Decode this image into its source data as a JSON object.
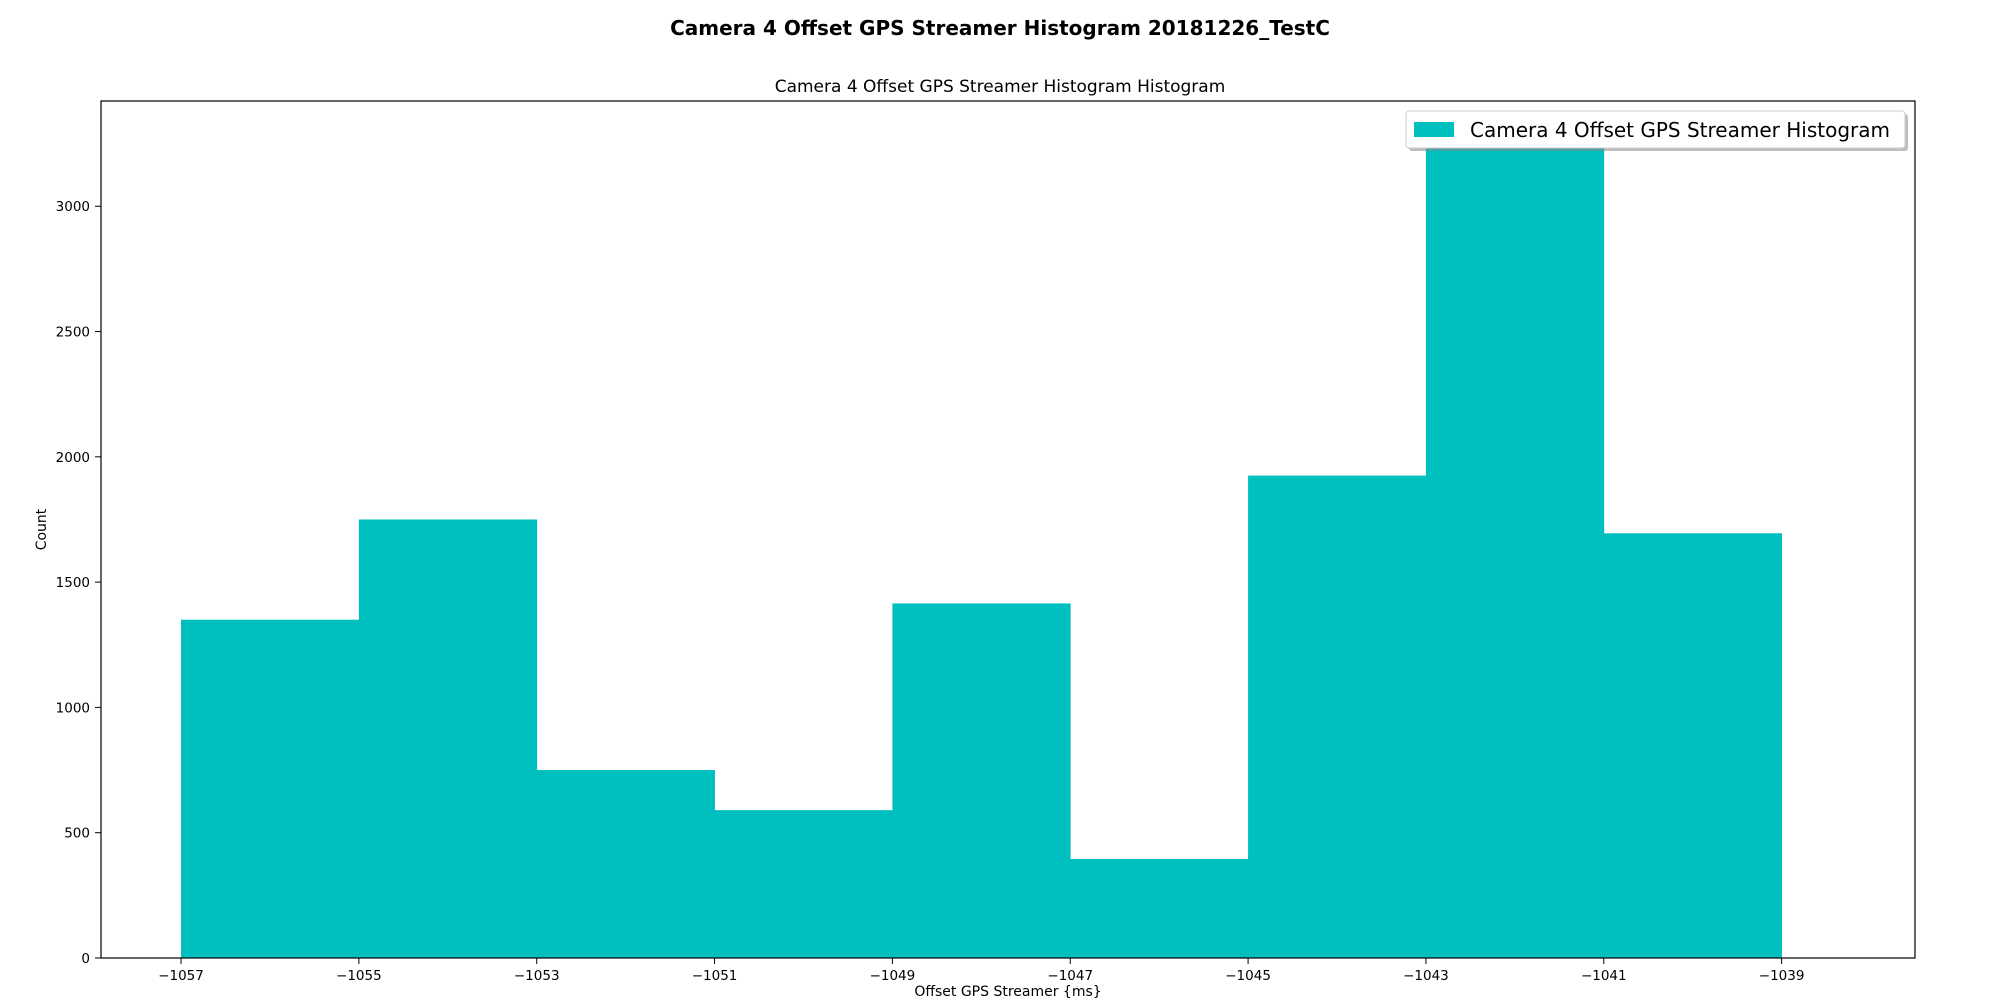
{
  "figure": {
    "suptitle": "Camera 4 Offset GPS Streamer Histogram 20181226_TestC"
  },
  "chart_data": {
    "type": "bar",
    "subtype": "histogram",
    "title": "Camera 4 Offset GPS Streamer Histogram Histogram",
    "xlabel": "Offset GPS Streamer {ms}",
    "ylabel": "Count",
    "bin_edges": [
      -1057,
      -1055,
      -1053,
      -1051,
      -1049,
      -1047,
      -1045,
      -1043,
      -1041,
      -1039
    ],
    "values": [
      1350,
      1750,
      750,
      590,
      1415,
      395,
      1925,
      3240,
      1695
    ],
    "xlim": [
      -1057.9,
      -1037.5
    ],
    "ylim": [
      0,
      3420
    ],
    "xticks": [
      -1057,
      -1055,
      -1053,
      -1051,
      -1049,
      -1047,
      -1045,
      -1043,
      -1041,
      -1039
    ],
    "xtick_labels": [
      "−1057",
      "−1055",
      "−1053",
      "−1051",
      "−1049",
      "−1047",
      "−1045",
      "−1043",
      "−1041",
      "−1039"
    ],
    "yticks": [
      0,
      500,
      1000,
      1500,
      2000,
      2500,
      3000
    ],
    "ytick_labels": [
      "0",
      "500",
      "1000",
      "1500",
      "2000",
      "2500",
      "3000"
    ],
    "series": [
      {
        "name": "Camera 4 Offset GPS Streamer Histogram",
        "color": "#00bfbf"
      }
    ],
    "legend": {
      "location": "upper-right"
    },
    "grid": false
  }
}
